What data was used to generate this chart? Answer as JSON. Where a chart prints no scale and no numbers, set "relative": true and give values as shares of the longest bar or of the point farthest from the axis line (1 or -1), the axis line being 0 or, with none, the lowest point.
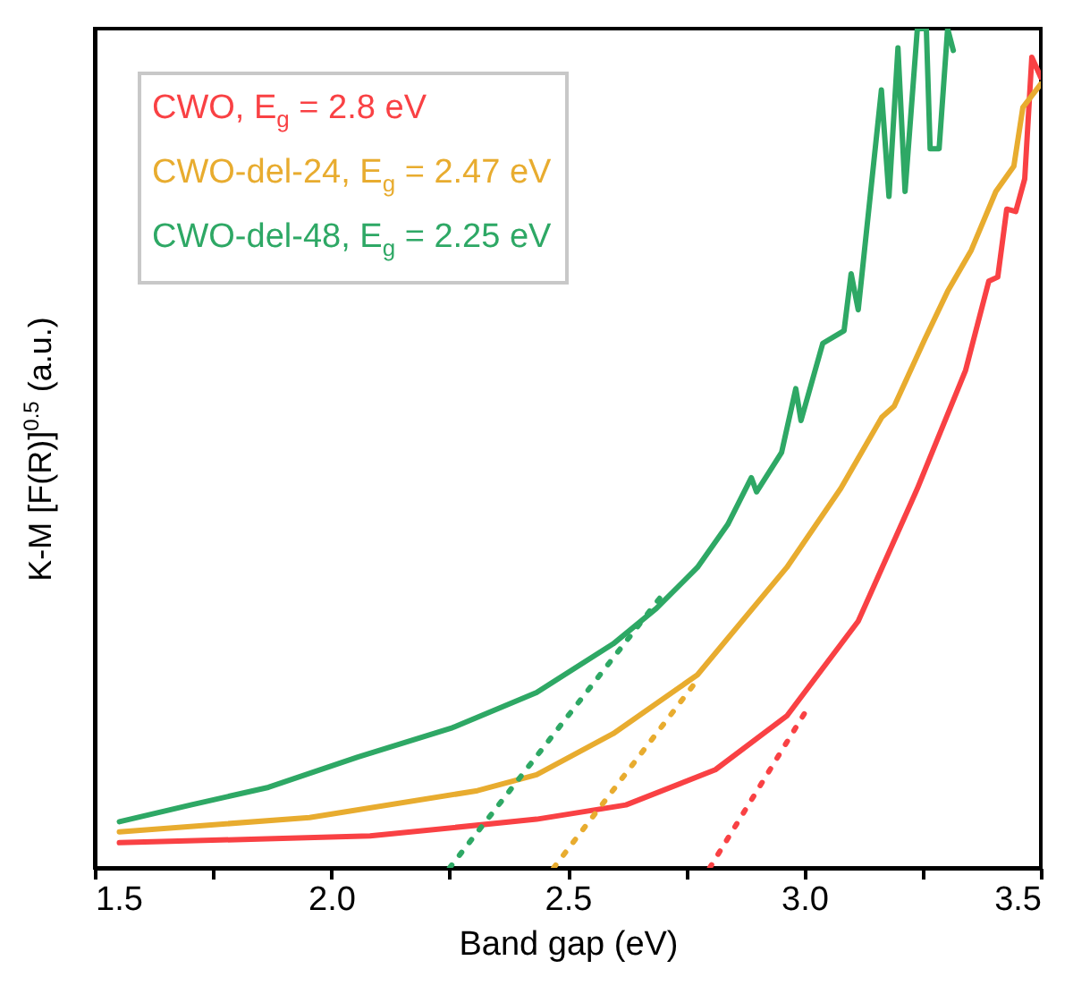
{
  "chart_data": {
    "type": "line",
    "relative": true,
    "xlabel": "Band gap (eV)",
    "ylabel": "K-M [F(R)]$^{0.5}$ (a.u.)",
    "xlim": [
      1.5,
      3.5
    ],
    "xticks": [
      {
        "value": 1.5,
        "label": "1.5"
      },
      {
        "value": 1.75,
        "label": null
      },
      {
        "value": 2,
        "label": "2.0"
      },
      {
        "value": 2.25,
        "label": null
      },
      {
        "value": 2.5,
        "label": "2.5"
      },
      {
        "value": 2.75,
        "label": null
      },
      {
        "value": 3,
        "label": "3.0"
      },
      {
        "value": 3.25,
        "label": null
      },
      {
        "value": 3.5,
        "label": "3.5"
      }
    ],
    "legend": "top left",
    "grid": false,
    "tick_labels": "x",
    "series": [
      {
        "name": "CWO, E$_{g}$ = 2.8 eV",
        "color": "#f94144",
        "x": [
          1.552,
          2.082,
          2.434,
          2.623,
          2.812,
          2.963,
          3.114,
          3.239,
          3.341,
          3.39,
          3.409,
          3.428,
          3.447,
          3.466,
          3.481,
          3.5
        ],
        "values": [
          0.03,
          0.038,
          0.058,
          0.075,
          0.117,
          0.181,
          0.294,
          0.452,
          0.593,
          0.699,
          0.704,
          0.785,
          0.782,
          0.821,
          0.966,
          0.942
        ]
      },
      {
        "name": "CWO-del-24, E$_{g}$ = 2.47 eV",
        "color": "#e8ac2f",
        "x": [
          1.552,
          1.954,
          2.309,
          2.434,
          2.596,
          2.774,
          2.963,
          3.077,
          3.164,
          3.19,
          3.254,
          3.303,
          3.353,
          3.405,
          3.443,
          3.462,
          3.5
        ],
        "values": [
          0.043,
          0.06,
          0.092,
          0.111,
          0.16,
          0.23,
          0.358,
          0.452,
          0.537,
          0.55,
          0.629,
          0.687,
          0.736,
          0.806,
          0.836,
          0.906,
          0.934
        ]
      },
      {
        "name": "CWO-del-48, E$_{g}$ = 2.25 eV",
        "color": "#2ea865",
        "x": [
          1.552,
          1.703,
          1.867,
          2.056,
          2.256,
          2.434,
          2.596,
          2.687,
          2.774,
          2.838,
          2.888,
          2.899,
          2.952,
          2.982,
          2.993,
          3.039,
          3.084,
          3.099,
          3.114,
          3.163,
          3.179,
          3.198,
          3.213,
          3.239,
          3.258,
          3.266,
          3.285,
          3.303,
          3.315
        ],
        "values": [
          0.055,
          0.075,
          0.096,
          0.132,
          0.167,
          0.209,
          0.267,
          0.309,
          0.358,
          0.409,
          0.465,
          0.448,
          0.495,
          0.571,
          0.533,
          0.625,
          0.64,
          0.708,
          0.665,
          0.927,
          0.8,
          0.977,
          0.806,
          1,
          1,
          0.857,
          0.857,
          1,
          0.974
        ]
      },
      {
        "color": "#2ea865",
        "line_style": "dotted",
        "x": [
          2.25,
          2.698
        ],
        "values": [
          0,
          0.324
        ]
      },
      {
        "color": "#e8ac2f",
        "line_style": "dotted",
        "x": [
          2.47,
          2.774
        ],
        "values": [
          0,
          0.224
        ]
      },
      {
        "color": "#f94144",
        "line_style": "dotted",
        "x": [
          2.8,
          3.009
        ],
        "values": [
          0,
          0.192
        ]
      }
    ]
  }
}
